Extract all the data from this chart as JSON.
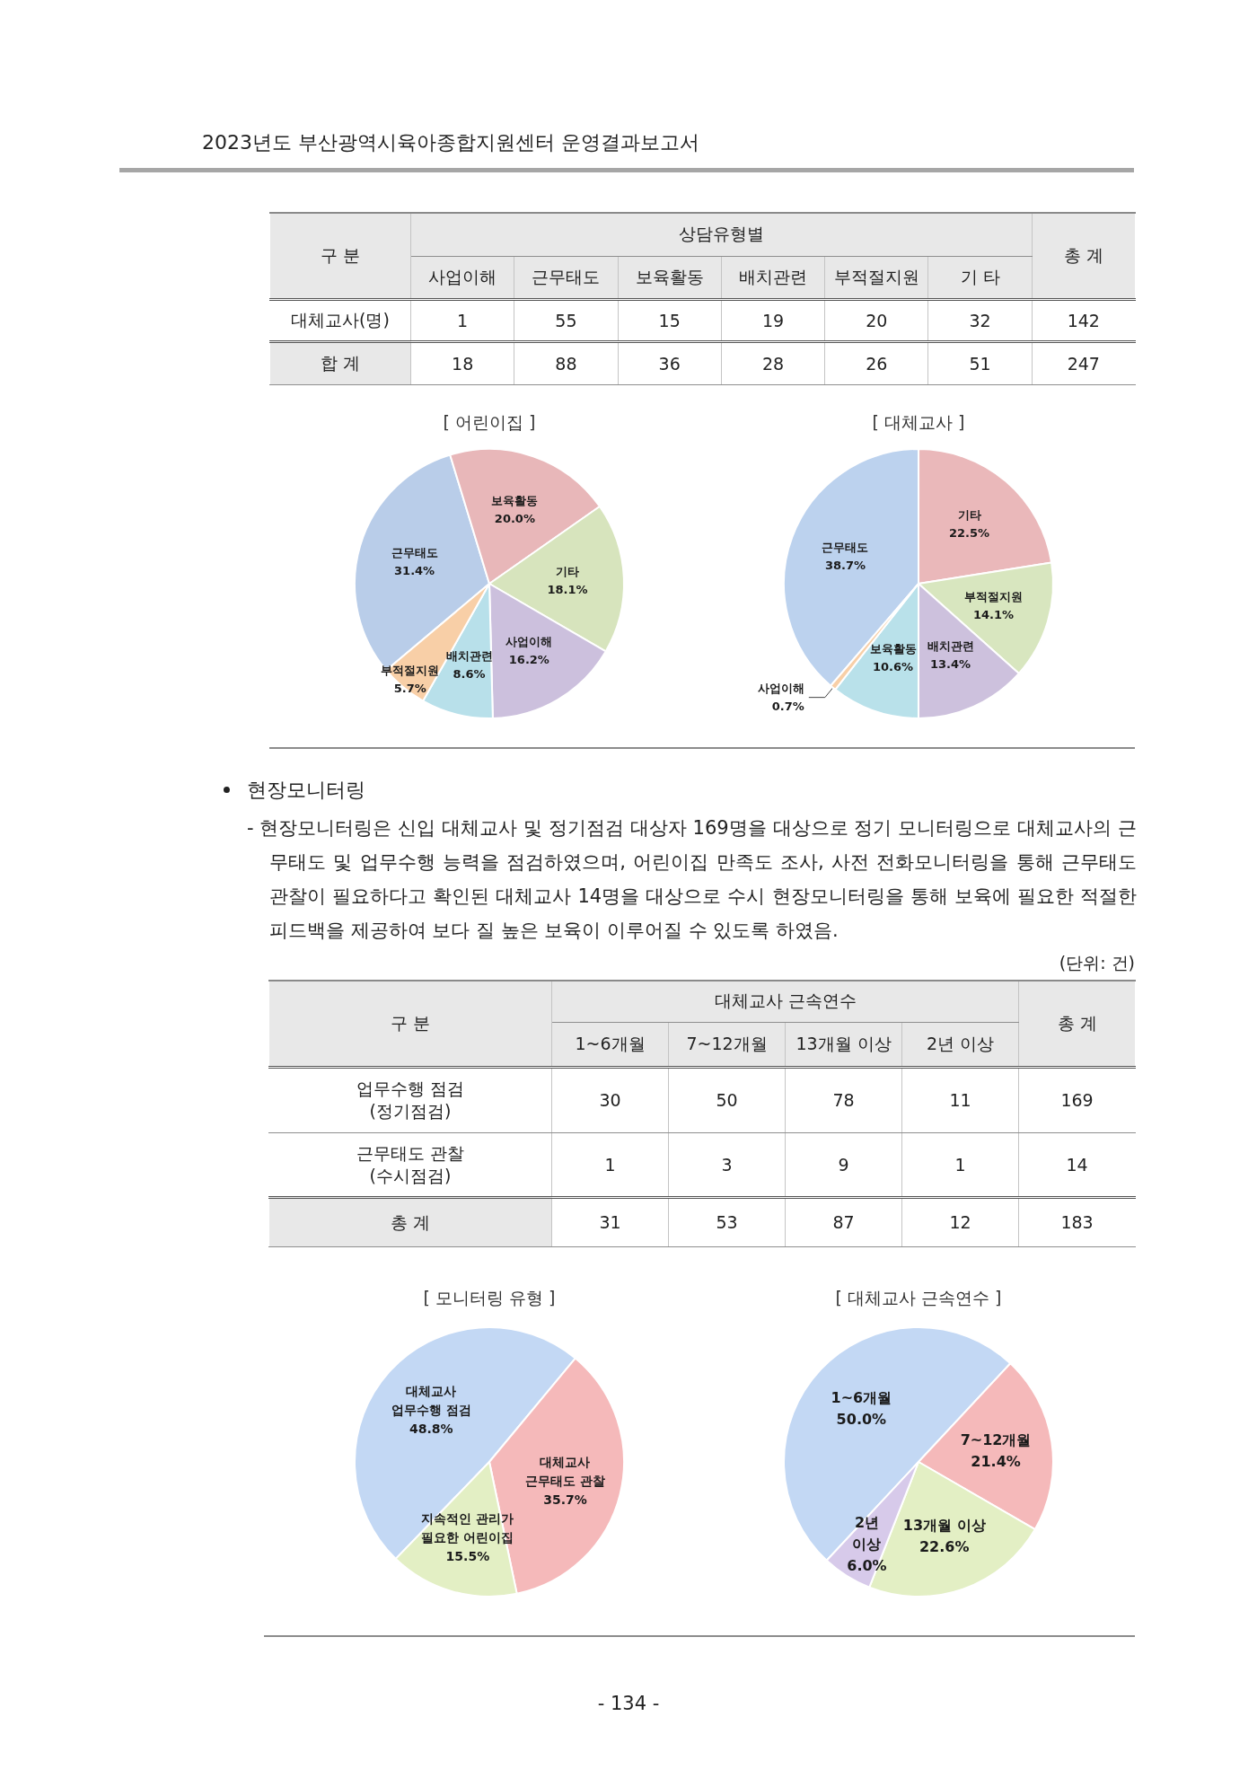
{
  "chart_data": [
    {
      "type": "other",
      "title": "2023년도 부산광역시육아종합지원센터 운영결과보고서"
    },
    {
      "type": "heatmap",
      "ylabel": "구 분",
      "xlabel": "상담유형별",
      "categories": [
        "사업이해",
        "근무태도",
        "보육활동",
        "배치관련",
        "부적절지원",
        "기 타",
        "총 계"
      ],
      "y_categories": [
        "대체교사(명)",
        "합 계"
      ],
      "cells": [
        [
          1,
          55,
          15,
          19,
          20,
          32,
          142
        ],
        [
          18,
          88,
          36,
          28,
          26,
          51,
          247
        ]
      ],
      "data_labels": true
    },
    {
      "type": "pie",
      "title": "[ 어린이집 ]",
      "categories": [
        "근무태도",
        "보육활동",
        "기타",
        "사업이해",
        "배치관련",
        "부적절지원"
      ],
      "values": [
        31.4,
        20.0,
        18.1,
        16.2,
        8.6,
        5.7
      ],
      "colors": [
        "#b9cde9",
        "#e8b7b9",
        "#d7e4bd",
        "#ccc0dd",
        "#b8e0ea",
        "#f8cfa7"
      ],
      "value_labels": [
        "31.4%",
        "20.0%",
        "18.1%",
        "16.2%",
        "8.6%",
        "5.7%"
      ]
    },
    {
      "type": "pie",
      "title": "[ 대체교사 ]",
      "categories": [
        "근무태도",
        "기타",
        "부적절지원",
        "배치관련",
        "보육활동",
        "사업이해"
      ],
      "values": [
        38.7,
        22.5,
        14.1,
        13.4,
        10.6,
        0.7
      ],
      "colors": [
        "#bcd2ee",
        "#eab8ba",
        "#d8e6bf",
        "#cdc1dd",
        "#b9e1ea",
        "#f8cfa7"
      ],
      "value_labels": [
        "38.7%",
        "22.5%",
        "14.1%",
        "13.4%",
        "10.6%",
        "0.7%"
      ]
    },
    {
      "type": "other",
      "title": "현장모니터링",
      "annotations": [
        "- 현장모니터링은 신입 대체교사 및 정기점검 대상자 169명을 대상으로 정기 모니터링으로 대체교사의 근무태도 및 업무수행 능력을 점검하였으며, 어린이집 만족도 조사, 사전 전화모니터링을 통해 근무태도 관찰이 필요하다고 확인된 대체교사 14명을 대상으로 수시 현장모니터링을 통해 보육에 필요한 적절한 피드백을 제공하여 보다 질 높은 보육이 이루어질 수 있도록 하였음."
      ]
    },
    {
      "type": "heatmap",
      "annotations": [
        "(단위: 건)"
      ],
      "ylabel": "구 분",
      "xlabel": "대체교사 근속연수",
      "categories": [
        "1~6개월",
        "7~12개월",
        "13개월 이상",
        "2년 이상",
        "총 계"
      ],
      "y_categories": [
        "업무수행 점검 (정기점검)",
        "근무태도 관찰 (수시점검)",
        "총 계"
      ],
      "cells": [
        [
          30,
          50,
          78,
          11,
          169
        ],
        [
          1,
          3,
          9,
          1,
          14
        ],
        [
          31,
          53,
          87,
          12,
          183
        ]
      ],
      "data_labels": true
    },
    {
      "type": "pie",
      "title": "[ 모니터링 유형 ]",
      "categories": [
        "대체교사 업무수행 점검",
        "대체교사 근무태도 관찰",
        "지속적인 관리가 필요한 어린이집"
      ],
      "values": [
        48.8,
        35.7,
        15.5
      ],
      "colors": [
        "#c3d8f4",
        "#f5b9ba",
        "#e3efc4"
      ],
      "value_labels": [
        "48.8%",
        "35.7%",
        "15.5%"
      ]
    },
    {
      "type": "pie",
      "title": "[ 대체교사 근속연수 ]",
      "categories": [
        "1~6개월",
        "7~12개월",
        "13개월 이상",
        "2년 이상"
      ],
      "values": [
        50.0,
        21.4,
        22.6,
        6.0
      ],
      "colors": [
        "#c3d8f4",
        "#f5b9ba",
        "#e3efc4",
        "#d7caea"
      ],
      "value_labels": [
        "50.0%",
        "21.4%",
        "22.6%",
        "6.0%"
      ]
    },
    {
      "type": "other",
      "annotations": [
        "- 134 -"
      ]
    }
  ]
}
